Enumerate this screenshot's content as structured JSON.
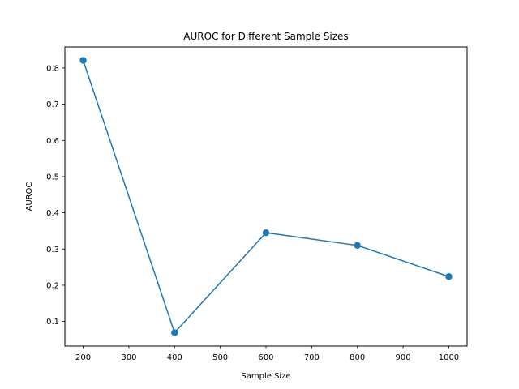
{
  "chart_data": {
    "type": "line",
    "title": "AUROC for Different Sample Sizes",
    "xlabel": "Sample Size",
    "ylabel": "AUROC",
    "x": [
      200,
      400,
      600,
      800,
      1000
    ],
    "series": [
      {
        "values": [
          0.821,
          0.069,
          0.345,
          0.31,
          0.224
        ],
        "color": "#1f77b4",
        "marker": "circle"
      }
    ],
    "xlim": [
      160,
      1040
    ],
    "ylim": [
      0.032,
      0.858
    ],
    "xticks": [
      200,
      300,
      400,
      500,
      600,
      700,
      800,
      900,
      1000
    ],
    "yticks": [
      0.1,
      0.2,
      0.3,
      0.4,
      0.5,
      0.6,
      0.7,
      0.8
    ],
    "grid": false
  }
}
